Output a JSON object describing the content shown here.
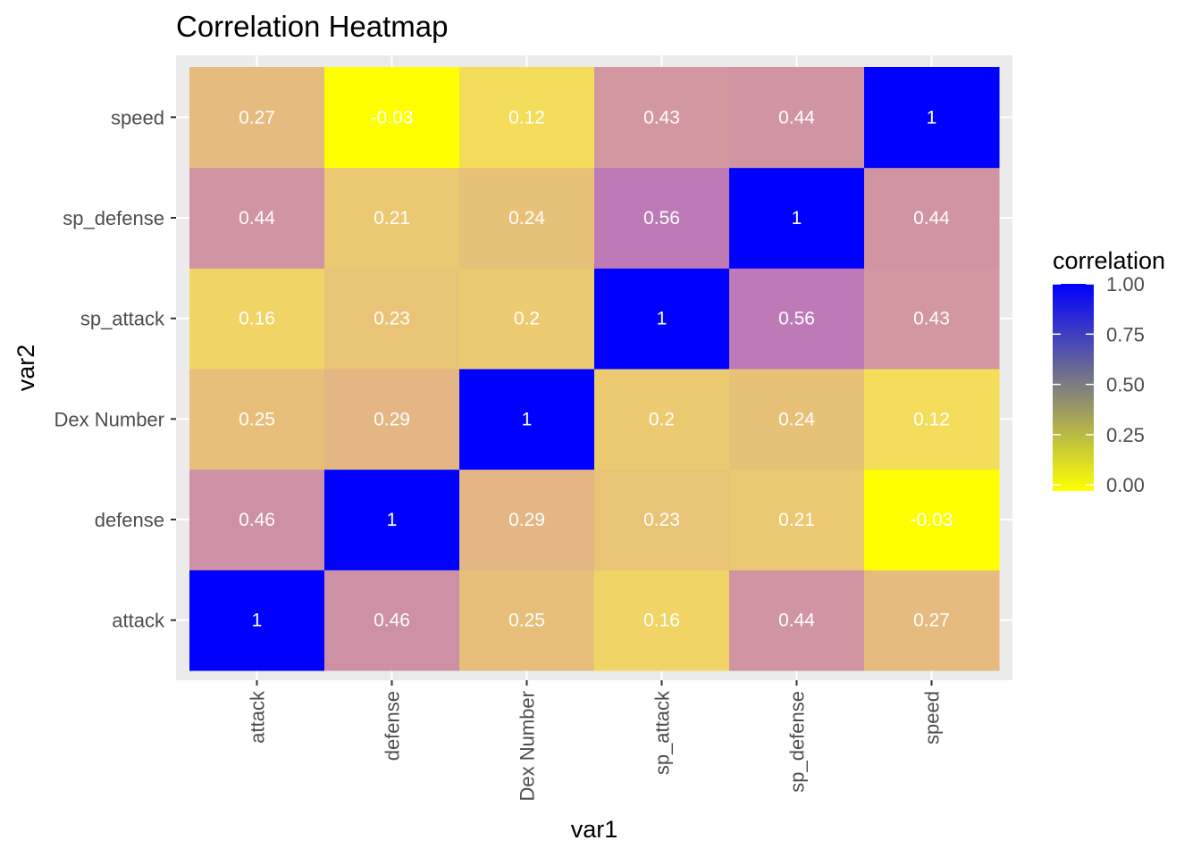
{
  "chart_data": {
    "type": "heatmap",
    "title": "Correlation Heatmap",
    "xlabel": "var1",
    "ylabel": "var2",
    "x_categories": [
      "attack",
      "defense",
      "Dex Number",
      "sp_attack",
      "sp_defense",
      "speed"
    ],
    "y_categories": [
      "attack",
      "defense",
      "Dex Number",
      "sp_attack",
      "sp_defense",
      "speed"
    ],
    "cells": [
      {
        "x": "attack",
        "y": "attack",
        "value": 1,
        "label": "1"
      },
      {
        "x": "defense",
        "y": "attack",
        "value": 0.46,
        "label": "0.46"
      },
      {
        "x": "Dex Number",
        "y": "attack",
        "value": 0.25,
        "label": "0.25"
      },
      {
        "x": "sp_attack",
        "y": "attack",
        "value": 0.16,
        "label": "0.16"
      },
      {
        "x": "sp_defense",
        "y": "attack",
        "value": 0.44,
        "label": "0.44"
      },
      {
        "x": "speed",
        "y": "attack",
        "value": 0.27,
        "label": "0.27"
      },
      {
        "x": "attack",
        "y": "defense",
        "value": 0.46,
        "label": "0.46"
      },
      {
        "x": "defense",
        "y": "defense",
        "value": 1,
        "label": "1"
      },
      {
        "x": "Dex Number",
        "y": "defense",
        "value": 0.29,
        "label": "0.29"
      },
      {
        "x": "sp_attack",
        "y": "defense",
        "value": 0.23,
        "label": "0.23"
      },
      {
        "x": "sp_defense",
        "y": "defense",
        "value": 0.21,
        "label": "0.21"
      },
      {
        "x": "speed",
        "y": "defense",
        "value": -0.03,
        "label": "-0.03"
      },
      {
        "x": "attack",
        "y": "Dex Number",
        "value": 0.25,
        "label": "0.25"
      },
      {
        "x": "defense",
        "y": "Dex Number",
        "value": 0.29,
        "label": "0.29"
      },
      {
        "x": "Dex Number",
        "y": "Dex Number",
        "value": 1,
        "label": "1"
      },
      {
        "x": "sp_attack",
        "y": "Dex Number",
        "value": 0.2,
        "label": "0.2"
      },
      {
        "x": "sp_defense",
        "y": "Dex Number",
        "value": 0.24,
        "label": "0.24"
      },
      {
        "x": "speed",
        "y": "Dex Number",
        "value": 0.12,
        "label": "0.12"
      },
      {
        "x": "attack",
        "y": "sp_attack",
        "value": 0.16,
        "label": "0.16"
      },
      {
        "x": "defense",
        "y": "sp_attack",
        "value": 0.23,
        "label": "0.23"
      },
      {
        "x": "Dex Number",
        "y": "sp_attack",
        "value": 0.2,
        "label": "0.2"
      },
      {
        "x": "sp_attack",
        "y": "sp_attack",
        "value": 1,
        "label": "1"
      },
      {
        "x": "sp_defense",
        "y": "sp_attack",
        "value": 0.56,
        "label": "0.56"
      },
      {
        "x": "speed",
        "y": "sp_attack",
        "value": 0.43,
        "label": "0.43"
      },
      {
        "x": "attack",
        "y": "sp_defense",
        "value": 0.44,
        "label": "0.44"
      },
      {
        "x": "defense",
        "y": "sp_defense",
        "value": 0.21,
        "label": "0.21"
      },
      {
        "x": "Dex Number",
        "y": "sp_defense",
        "value": 0.24,
        "label": "0.24"
      },
      {
        "x": "sp_attack",
        "y": "sp_defense",
        "value": 0.56,
        "label": "0.56"
      },
      {
        "x": "sp_defense",
        "y": "sp_defense",
        "value": 1,
        "label": "1"
      },
      {
        "x": "speed",
        "y": "sp_defense",
        "value": 0.44,
        "label": "0.44"
      },
      {
        "x": "attack",
        "y": "speed",
        "value": 0.27,
        "label": "0.27"
      },
      {
        "x": "defense",
        "y": "speed",
        "value": -0.03,
        "label": "-0.03"
      },
      {
        "x": "Dex Number",
        "y": "speed",
        "value": 0.12,
        "label": "0.12"
      },
      {
        "x": "sp_attack",
        "y": "speed",
        "value": 0.43,
        "label": "0.43"
      },
      {
        "x": "sp_defense",
        "y": "speed",
        "value": 0.44,
        "label": "0.44"
      },
      {
        "x": "speed",
        "y": "speed",
        "value": 1,
        "label": "1"
      }
    ],
    "legend": {
      "title": "correlation",
      "position": "right",
      "ticks": [
        {
          "value": 1.0,
          "label": "1.00"
        },
        {
          "value": 0.75,
          "label": "0.75"
        },
        {
          "value": 0.5,
          "label": "0.50"
        },
        {
          "value": 0.25,
          "label": "0.25"
        },
        {
          "value": 0.0,
          "label": "0.00"
        }
      ]
    },
    "color_scale": {
      "low_color": "#ffff00",
      "high_color": "#0000ff",
      "range": [
        -0.03,
        1
      ]
    },
    "panel_background": "#ebebeb",
    "gridline_color": "#ffffff",
    "grid": true
  }
}
